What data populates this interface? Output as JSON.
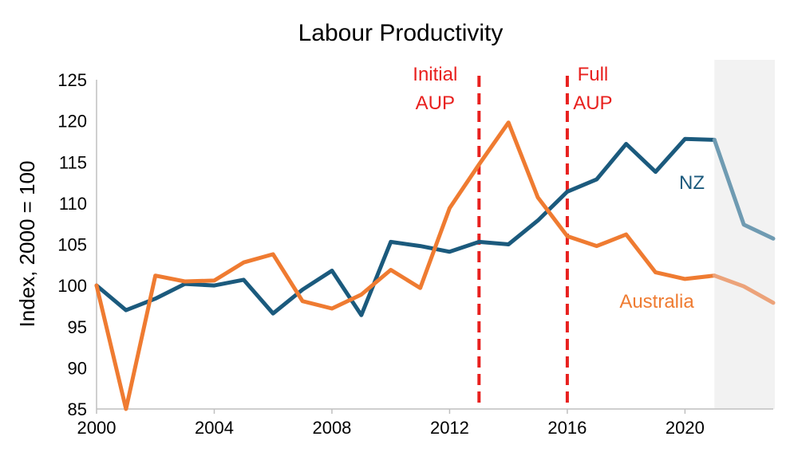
{
  "chart_data": {
    "type": "line",
    "title": "Labour Productivity",
    "xlabel": "",
    "ylabel": "Index, 2000 = 100",
    "xlim": [
      2000,
      2023
    ],
    "ylim": [
      85,
      125
    ],
    "xticks": [
      2000,
      2004,
      2008,
      2012,
      2016,
      2020
    ],
    "yticks": [
      85,
      90,
      95,
      100,
      105,
      110,
      115,
      120,
      125
    ],
    "grid": false,
    "legend": "none",
    "forecast_start": 2021,
    "shaded_region": [
      2021,
      2023
    ],
    "series": [
      {
        "name": "NZ",
        "color": "#1b5a7d",
        "forecast_color": "#6f9bb2",
        "x": [
          2000,
          2001,
          2002,
          2003,
          2004,
          2005,
          2006,
          2007,
          2008,
          2009,
          2010,
          2011,
          2012,
          2013,
          2014,
          2015,
          2016,
          2017,
          2018,
          2019,
          2020,
          2021,
          2022,
          2023
        ],
        "values": [
          100.0,
          97.0,
          98.4,
          100.2,
          100.0,
          100.7,
          96.6,
          99.5,
          101.8,
          96.4,
          105.3,
          104.8,
          104.1,
          105.3,
          105.0,
          107.9,
          111.4,
          112.9,
          117.2,
          113.8,
          117.8,
          117.7,
          107.4,
          105.7
        ]
      },
      {
        "name": "Australia",
        "color": "#ef7b31",
        "forecast_color": "#eca37a",
        "x": [
          2000,
          2001,
          2002,
          2003,
          2004,
          2005,
          2006,
          2007,
          2008,
          2009,
          2010,
          2011,
          2012,
          2013,
          2014,
          2015,
          2016,
          2017,
          2018,
          2019,
          2020,
          2021,
          2022,
          2023
        ],
        "values": [
          100.0,
          85.0,
          101.2,
          100.5,
          100.6,
          102.8,
          103.8,
          98.1,
          97.2,
          98.9,
          101.9,
          99.7,
          109.4,
          114.7,
          119.8,
          110.7,
          106.0,
          104.8,
          106.2,
          101.6,
          100.8,
          101.2,
          99.9,
          97.9
        ]
      }
    ],
    "annotations": [
      {
        "x": 2013,
        "lines": [
          "Initial",
          "AUP"
        ],
        "color": "#e8201e"
      },
      {
        "x": 2016,
        "lines": [
          "Full",
          "AUP"
        ],
        "color": "#e8201e"
      }
    ]
  }
}
